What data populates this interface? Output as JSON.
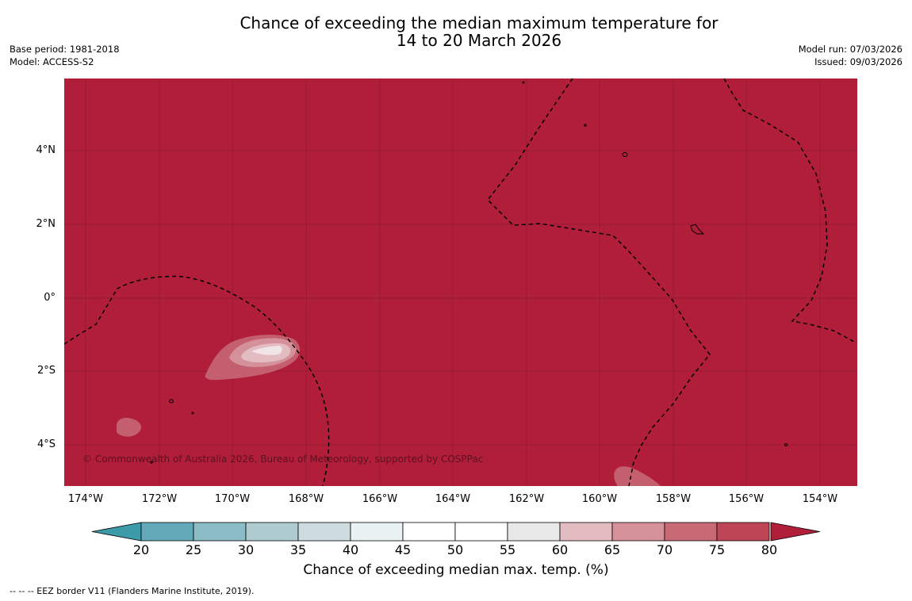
{
  "title_line1": "Chance of exceeding the median maximum temperature for",
  "title_line2": "14 to 20 March 2026",
  "meta_left": [
    "Base period: 1981-2018",
    "Model: ACCESS-S2"
  ],
  "meta_right": [
    "Model run: 07/03/2026",
    "Issued: 09/03/2026"
  ],
  "copyright": "© Commonwealth of Australia 2026, Bureau of Meteorology, supported by COSPPac",
  "lat_labels": [
    "4°N",
    "2°N",
    "0°",
    "2°S",
    "4°S"
  ],
  "lon_labels": [
    "174°W",
    "172°W",
    "170°W",
    "168°W",
    "166°W",
    "164°W",
    "162°W",
    "160°W",
    "158°W",
    "156°W",
    "154°W"
  ],
  "colorbar": {
    "ticks": [
      "20",
      "25",
      "30",
      "35",
      "40",
      "45",
      "50",
      "55",
      "60",
      "65",
      "70",
      "75",
      "80"
    ],
    "label": "Chance of exceeding median max. temp. (%)",
    "under_color": "#3d9aa9",
    "over_color": "#b01e3a",
    "colors": [
      "#63a9ba",
      "#8cbcc6",
      "#aecbd0",
      "#cddcde",
      "#eaf2f3",
      "#ffffff",
      "#ffffff",
      "#e8e8e8",
      "#e3bcc1",
      "#d5919a",
      "#c86a76",
      "#bd4556"
    ]
  },
  "map_colors": {
    "background": "#b01e3a",
    "gridline": "#7a1528",
    "level_70": "#c45f6f",
    "level_65": "#d5919a",
    "level_60": "#e3bcc1",
    "level_55": "#f0e4e6"
  },
  "footer": "--  --  -- EEZ border V11 (Flanders Marine Institute, 2019)."
}
